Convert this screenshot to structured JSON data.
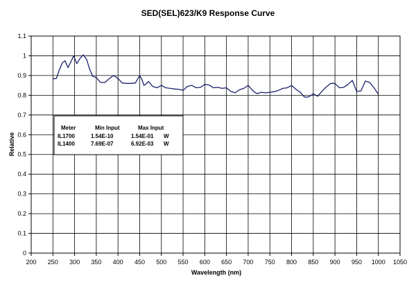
{
  "chart_data": {
    "type": "line",
    "title": "SED(SEL)623/K9 Response Curve",
    "xlabel": "Wavelength (nm)",
    "ylabel": "Relative",
    "xlim": [
      200,
      1050
    ],
    "ylim": [
      0,
      1.1
    ],
    "x_ticks": [
      "200",
      "250",
      "300",
      "350",
      "400",
      "450",
      "500",
      "550",
      "600",
      "650",
      "700",
      "750",
      "800",
      "850",
      "900",
      "950",
      "1000",
      "1050"
    ],
    "y_ticks": [
      "0",
      "0.1",
      "0.2",
      "0.3",
      "0.4",
      "0.5",
      "0.6",
      "0.7",
      "0.8",
      "0.9",
      "1",
      "1.1"
    ],
    "grid": true,
    "line_color": "#1a1f6b",
    "series": [
      {
        "x": [
          250,
          258,
          265,
          272,
          278,
          285,
          290,
          298,
          305,
          312,
          320,
          328,
          335,
          342,
          350,
          360,
          370,
          380,
          390,
          400,
          410,
          420,
          430,
          440,
          450,
          455,
          460,
          465,
          470,
          480,
          490,
          500,
          510,
          520,
          530,
          540,
          550,
          560,
          570,
          580,
          590,
          600,
          610,
          620,
          630,
          640,
          650,
          660,
          670,
          680,
          690,
          700,
          710,
          720,
          730,
          740,
          750,
          760,
          770,
          780,
          790,
          800,
          810,
          820,
          830,
          840,
          850,
          860,
          870,
          880,
          890,
          900,
          910,
          920,
          930,
          940,
          950,
          960,
          970,
          980,
          990,
          1000
        ],
        "y": [
          0.883,
          0.885,
          0.93,
          0.965,
          0.975,
          0.94,
          0.963,
          1.0,
          0.96,
          0.985,
          1.005,
          0.98,
          0.93,
          0.895,
          0.89,
          0.865,
          0.865,
          0.885,
          0.9,
          0.885,
          0.862,
          0.86,
          0.86,
          0.862,
          0.9,
          0.88,
          0.85,
          0.858,
          0.87,
          0.845,
          0.838,
          0.85,
          0.838,
          0.835,
          0.832,
          0.83,
          0.825,
          0.845,
          0.85,
          0.838,
          0.84,
          0.855,
          0.852,
          0.838,
          0.84,
          0.835,
          0.838,
          0.82,
          0.812,
          0.828,
          0.835,
          0.85,
          0.825,
          0.808,
          0.815,
          0.812,
          0.815,
          0.818,
          0.825,
          0.835,
          0.838,
          0.85,
          0.83,
          0.815,
          0.79,
          0.792,
          0.808,
          0.795,
          0.82,
          0.842,
          0.86,
          0.86,
          0.838,
          0.84,
          0.855,
          0.875,
          0.82,
          0.822,
          0.872,
          0.865,
          0.838,
          0.805
        ]
      }
    ]
  },
  "table": {
    "headers": [
      "Meter",
      "Min Input",
      "Max Input"
    ],
    "rows": [
      {
        "meter": "IL1700",
        "min": "1.54E-10",
        "max": "1.54E-01",
        "unit": "W"
      },
      {
        "meter": "IL1400",
        "min": "7.69E-07",
        "max": "6.92E-03",
        "unit": "W"
      }
    ]
  }
}
